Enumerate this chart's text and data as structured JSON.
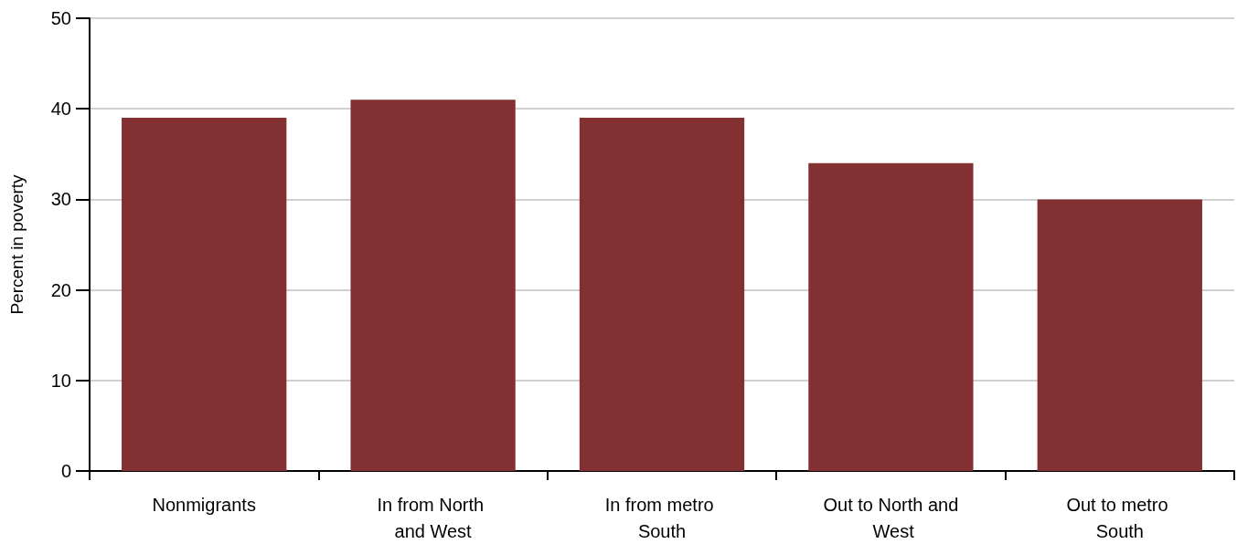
{
  "chart_data": {
    "type": "bar",
    "ylabel": "Percent in poverty",
    "categories": [
      "Nonmigrants",
      "In from North and West",
      "In from metro South",
      "Out to North and West",
      "Out to metro South"
    ],
    "values": [
      39,
      41,
      39,
      34,
      30
    ],
    "color": "#833033",
    "ylim": [
      0,
      50
    ],
    "yticks": [
      0,
      10,
      20,
      30,
      40,
      50
    ],
    "grid": "y"
  }
}
